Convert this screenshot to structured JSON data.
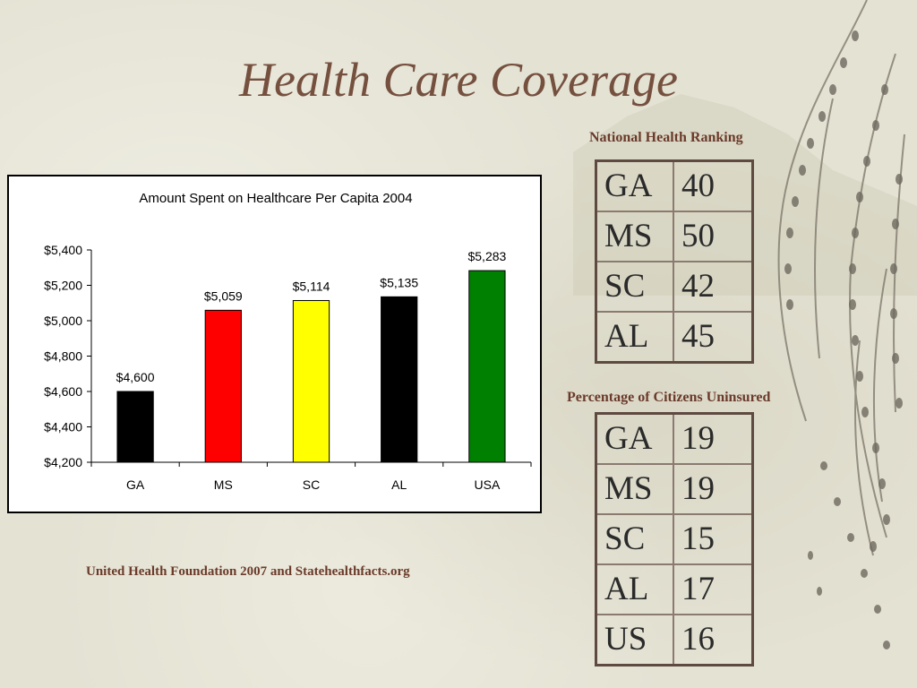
{
  "slide": {
    "title": "Health Care Coverage",
    "source": "United Health Foundation 2007 and Statehealthfacts.org"
  },
  "ranking": {
    "title": "National Health Ranking",
    "rows": [
      {
        "state": "GA",
        "value": "40"
      },
      {
        "state": "MS",
        "value": "50"
      },
      {
        "state": "SC",
        "value": "42"
      },
      {
        "state": "AL",
        "value": "45"
      }
    ]
  },
  "uninsured": {
    "title": "Percentage of Citizens Uninsured",
    "rows": [
      {
        "state": "GA",
        "value": "19"
      },
      {
        "state": "MS",
        "value": "19"
      },
      {
        "state": "SC",
        "value": "15"
      },
      {
        "state": "AL",
        "value": "17"
      },
      {
        "state": "US",
        "value": "16"
      }
    ]
  },
  "chart_data": {
    "type": "bar",
    "title": "Amount Spent on Healthcare Per Capita 2004",
    "xlabel": "",
    "ylabel": "",
    "categories": [
      "GA",
      "MS",
      "SC",
      "AL",
      "USA"
    ],
    "values": [
      4600,
      5059,
      5114,
      5135,
      5283
    ],
    "value_labels": [
      "$4,600",
      "$5,059",
      "$5,114",
      "$5,135",
      "$5,283"
    ],
    "colors": [
      "#000000",
      "#ff0000",
      "#ffff00",
      "#000000",
      "#008000"
    ],
    "ylim": [
      4200,
      5400
    ],
    "yticks": [
      4200,
      4400,
      4600,
      4800,
      5000,
      5200,
      5400
    ],
    "ytick_labels": [
      "$4,200",
      "$4,400",
      "$4,600",
      "$4,800",
      "$5,000",
      "$5,200",
      "$5,400"
    ],
    "grid": false,
    "legend": "none"
  }
}
